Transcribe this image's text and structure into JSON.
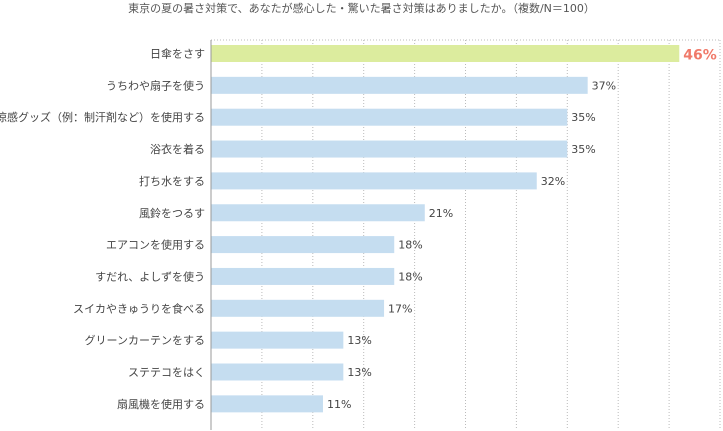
{
  "chart_data": {
    "type": "bar",
    "orientation": "horizontal",
    "title": "東京の夏の暑さ対策で、あなたが感心した・驚いた暑さ対策はありましたか。（複数/N＝100）",
    "categories": [
      "日傘をさす",
      "うちわや扇子を使う",
      "涼感グッズ（例：制汗剤など）を使用する",
      "浴衣を着る",
      "打ち水をする",
      "風鈴をつるす",
      "エアコンを使用する",
      "すだれ、よしずを使う",
      "スイカやきゅうりを食べる",
      "グリーンカーテンをする",
      "ステテコをはく",
      "扇風機を使用する"
    ],
    "values": [
      46,
      37,
      35,
      35,
      32,
      21,
      18,
      18,
      17,
      13,
      13,
      11
    ],
    "value_labels": [
      "46%",
      "37%",
      "35%",
      "35%",
      "32%",
      "21%",
      "18%",
      "18%",
      "17%",
      "13%",
      "13%",
      "11%"
    ],
    "xlim": [
      0,
      50
    ],
    "grid": true,
    "colors": {
      "bar": "#c5ddf0",
      "highlight_bar": "#dcec9e",
      "highlight_label": "#f07a6a",
      "label": "#444444",
      "grid": "#bbbbbb",
      "axis": "#999999"
    },
    "highlight_index": 0
  }
}
